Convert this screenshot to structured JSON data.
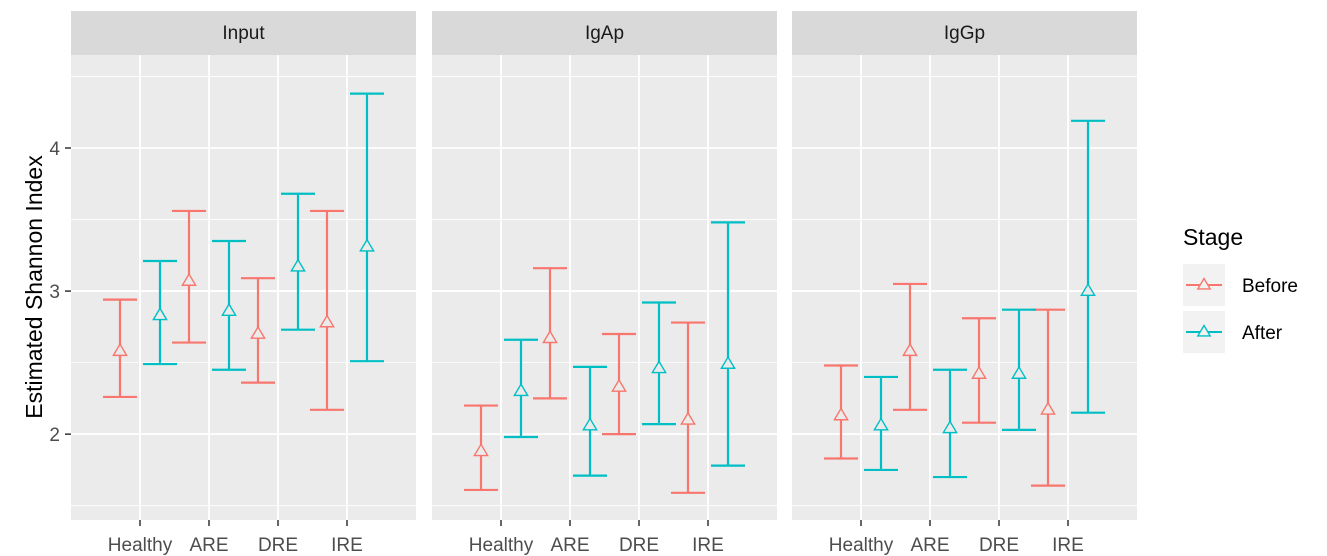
{
  "chart_data": {
    "type": "errorbar",
    "ylabel": "Estimated Shannon Index",
    "xlabel": "",
    "ylim": [
      1.4,
      4.65
    ],
    "y_ticks": [
      2,
      3,
      4
    ],
    "categories": [
      "Healthy",
      "ARE",
      "DRE",
      "IRE"
    ],
    "legend": {
      "title": "Stage",
      "position": "right"
    },
    "grid": true,
    "colors": {
      "Before": "#F8766D",
      "After": "#00BFC4",
      "panel_bg": "#EBEBEB",
      "strip_bg": "#D9D9D9"
    },
    "facets": [
      {
        "name": "Input",
        "series": [
          {
            "name": "Before",
            "mean": [
              2.58,
              3.07,
              2.7,
              2.78
            ],
            "lower": [
              2.26,
              2.64,
              2.36,
              2.17
            ],
            "upper": [
              2.94,
              3.56,
              3.09,
              3.56
            ]
          },
          {
            "name": "After",
            "mean": [
              2.83,
              2.86,
              3.17,
              3.31
            ],
            "lower": [
              2.49,
              2.45,
              2.73,
              2.51
            ],
            "upper": [
              3.21,
              3.35,
              3.68,
              4.38
            ]
          }
        ]
      },
      {
        "name": "IgAp",
        "series": [
          {
            "name": "Before",
            "mean": [
              1.88,
              2.67,
              2.33,
              2.1
            ],
            "lower": [
              1.61,
              2.25,
              2.0,
              1.59
            ],
            "upper": [
              2.2,
              3.16,
              2.7,
              2.78
            ]
          },
          {
            "name": "After",
            "mean": [
              2.3,
              2.06,
              2.46,
              2.49
            ],
            "lower": [
              1.98,
              1.71,
              2.07,
              1.78
            ],
            "upper": [
              2.66,
              2.47,
              2.92,
              3.48
            ]
          }
        ]
      },
      {
        "name": "IgGp",
        "series": [
          {
            "name": "Before",
            "mean": [
              2.13,
              2.58,
              2.42,
              2.17
            ],
            "lower": [
              1.83,
              2.17,
              2.08,
              1.64
            ],
            "upper": [
              2.48,
              3.05,
              2.81,
              2.87
            ]
          },
          {
            "name": "After",
            "mean": [
              2.06,
              2.04,
              2.42,
              3.0
            ],
            "lower": [
              1.75,
              1.7,
              2.03,
              2.15
            ],
            "upper": [
              2.4,
              2.45,
              2.87,
              4.19
            ]
          }
        ]
      }
    ]
  }
}
